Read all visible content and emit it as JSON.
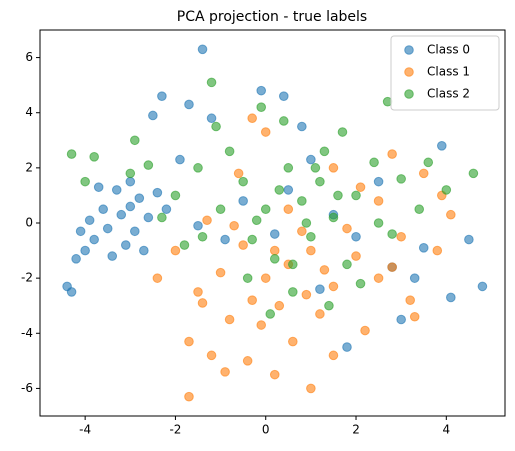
{
  "chart_data": {
    "type": "scatter",
    "title": "PCA projection - true labels",
    "xlim": [
      -5.0,
      5.3
    ],
    "ylim": [
      -7.0,
      7.0
    ],
    "xticks": [
      -4,
      -2,
      0,
      2,
      4
    ],
    "yticks": [
      -6,
      -4,
      -2,
      0,
      2,
      4,
      6
    ],
    "legend": "upper right",
    "alpha": 0.6,
    "series": [
      {
        "name": "Class 0",
        "color": "#1f77b4",
        "x": [
          -3.2,
          -3.5,
          -3.0,
          -3.8,
          -2.8,
          -3.3,
          -4.0,
          -3.6,
          -2.9,
          -3.1,
          -2.6,
          -3.9,
          -4.2,
          -3.4,
          -2.4,
          -2.2,
          -3.7,
          -4.1,
          -2.7,
          -3.0,
          -4.4,
          -4.3,
          -2.5,
          -1.4,
          -2.3,
          -1.7,
          -1.9,
          -1.2,
          0.4,
          -0.1,
          1.0,
          0.5,
          1.5,
          2.0,
          2.8,
          3.3,
          3.9,
          4.8,
          4.1,
          1.8,
          3.5,
          0.2,
          -0.5,
          1.2,
          2.5,
          -0.9,
          4.5,
          3.0,
          -1.5,
          0.8
        ],
        "values": [
          0.3,
          -0.2,
          0.6,
          -0.6,
          0.9,
          1.2,
          -1.0,
          0.5,
          -0.3,
          -0.8,
          0.2,
          0.1,
          -1.3,
          -1.2,
          1.1,
          0.5,
          1.3,
          -0.3,
          -1.0,
          1.5,
          -2.3,
          -2.5,
          3.9,
          6.3,
          4.6,
          4.3,
          2.3,
          3.8,
          4.6,
          4.8,
          2.3,
          1.2,
          0.3,
          -0.5,
          -1.6,
          -2.0,
          2.8,
          -2.3,
          -2.7,
          -4.5,
          -0.9,
          -0.4,
          0.8,
          -2.4,
          1.5,
          -0.6,
          -0.6,
          -3.5,
          -0.1,
          3.5
        ]
      },
      {
        "name": "Class 1",
        "color": "#ff7f0e",
        "x": [
          0.5,
          0.0,
          1.0,
          -0.5,
          1.5,
          0.3,
          -1.0,
          2.0,
          0.8,
          -0.3,
          1.2,
          -1.5,
          2.5,
          3.0,
          -0.8,
          0.6,
          -1.7,
          1.0,
          -1.7,
          -0.4,
          0.2,
          -1.2,
          2.2,
          3.2,
          3.8,
          4.1,
          3.5,
          2.8,
          1.5,
          0.0,
          -0.3,
          -2.4,
          -2.0,
          -1.3,
          1.8,
          2.5,
          0.5,
          -0.6,
          3.3,
          1.5,
          -0.9,
          0.2,
          1.3,
          -0.1,
          2.8,
          3.9,
          -1.4,
          0.9,
          2.1,
          -0.7
        ],
        "values": [
          -1.5,
          -2.0,
          -1.0,
          -0.8,
          -2.3,
          -3.0,
          -1.8,
          -1.2,
          -0.3,
          -2.8,
          -3.3,
          -2.5,
          -2.0,
          -0.5,
          -3.5,
          -4.3,
          -6.3,
          -6.0,
          -4.3,
          -5.0,
          -5.5,
          -4.8,
          -3.9,
          -2.8,
          -1.0,
          0.3,
          1.8,
          2.5,
          2.0,
          3.3,
          3.8,
          -2.0,
          -1.0,
          0.1,
          -0.2,
          0.8,
          0.5,
          1.8,
          -3.4,
          -4.8,
          -5.4,
          -1.0,
          -1.7,
          -3.7,
          -1.6,
          1.0,
          -2.9,
          -2.6,
          1.3,
          -0.1
        ]
      },
      {
        "name": "Class 2",
        "color": "#2ca02c",
        "x": [
          0.8,
          1.2,
          0.3,
          1.5,
          0.0,
          2.0,
          0.5,
          -0.5,
          1.0,
          2.5,
          -1.0,
          0.2,
          1.8,
          -0.3,
          3.0,
          2.4,
          1.3,
          -1.5,
          -2.0,
          -2.6,
          -3.0,
          -4.3,
          -3.8,
          -4.0,
          -2.9,
          -1.2,
          -1.1,
          -0.1,
          0.4,
          2.7,
          1.7,
          4.6,
          4.0,
          3.4,
          2.1,
          0.6,
          -0.4,
          1.4,
          0.1,
          -1.4,
          -0.8,
          0.9,
          1.6,
          -0.2,
          2.8,
          -1.8,
          3.6,
          0.6,
          1.1,
          -2.3
        ],
        "values": [
          0.8,
          1.5,
          1.2,
          0.2,
          0.5,
          1.0,
          2.0,
          1.5,
          -0.5,
          0.0,
          0.5,
          -1.3,
          -1.5,
          -0.6,
          1.6,
          2.2,
          2.6,
          2.0,
          1.0,
          2.1,
          1.8,
          2.5,
          2.4,
          1.5,
          3.0,
          5.1,
          3.5,
          4.2,
          3.7,
          4.4,
          3.3,
          1.8,
          1.2,
          0.5,
          -2.2,
          -2.5,
          -2.0,
          -3.0,
          -3.3,
          -0.5,
          2.6,
          0.0,
          1.0,
          0.1,
          -0.4,
          -0.8,
          2.2,
          -1.5,
          2.0,
          0.2
        ]
      }
    ]
  }
}
